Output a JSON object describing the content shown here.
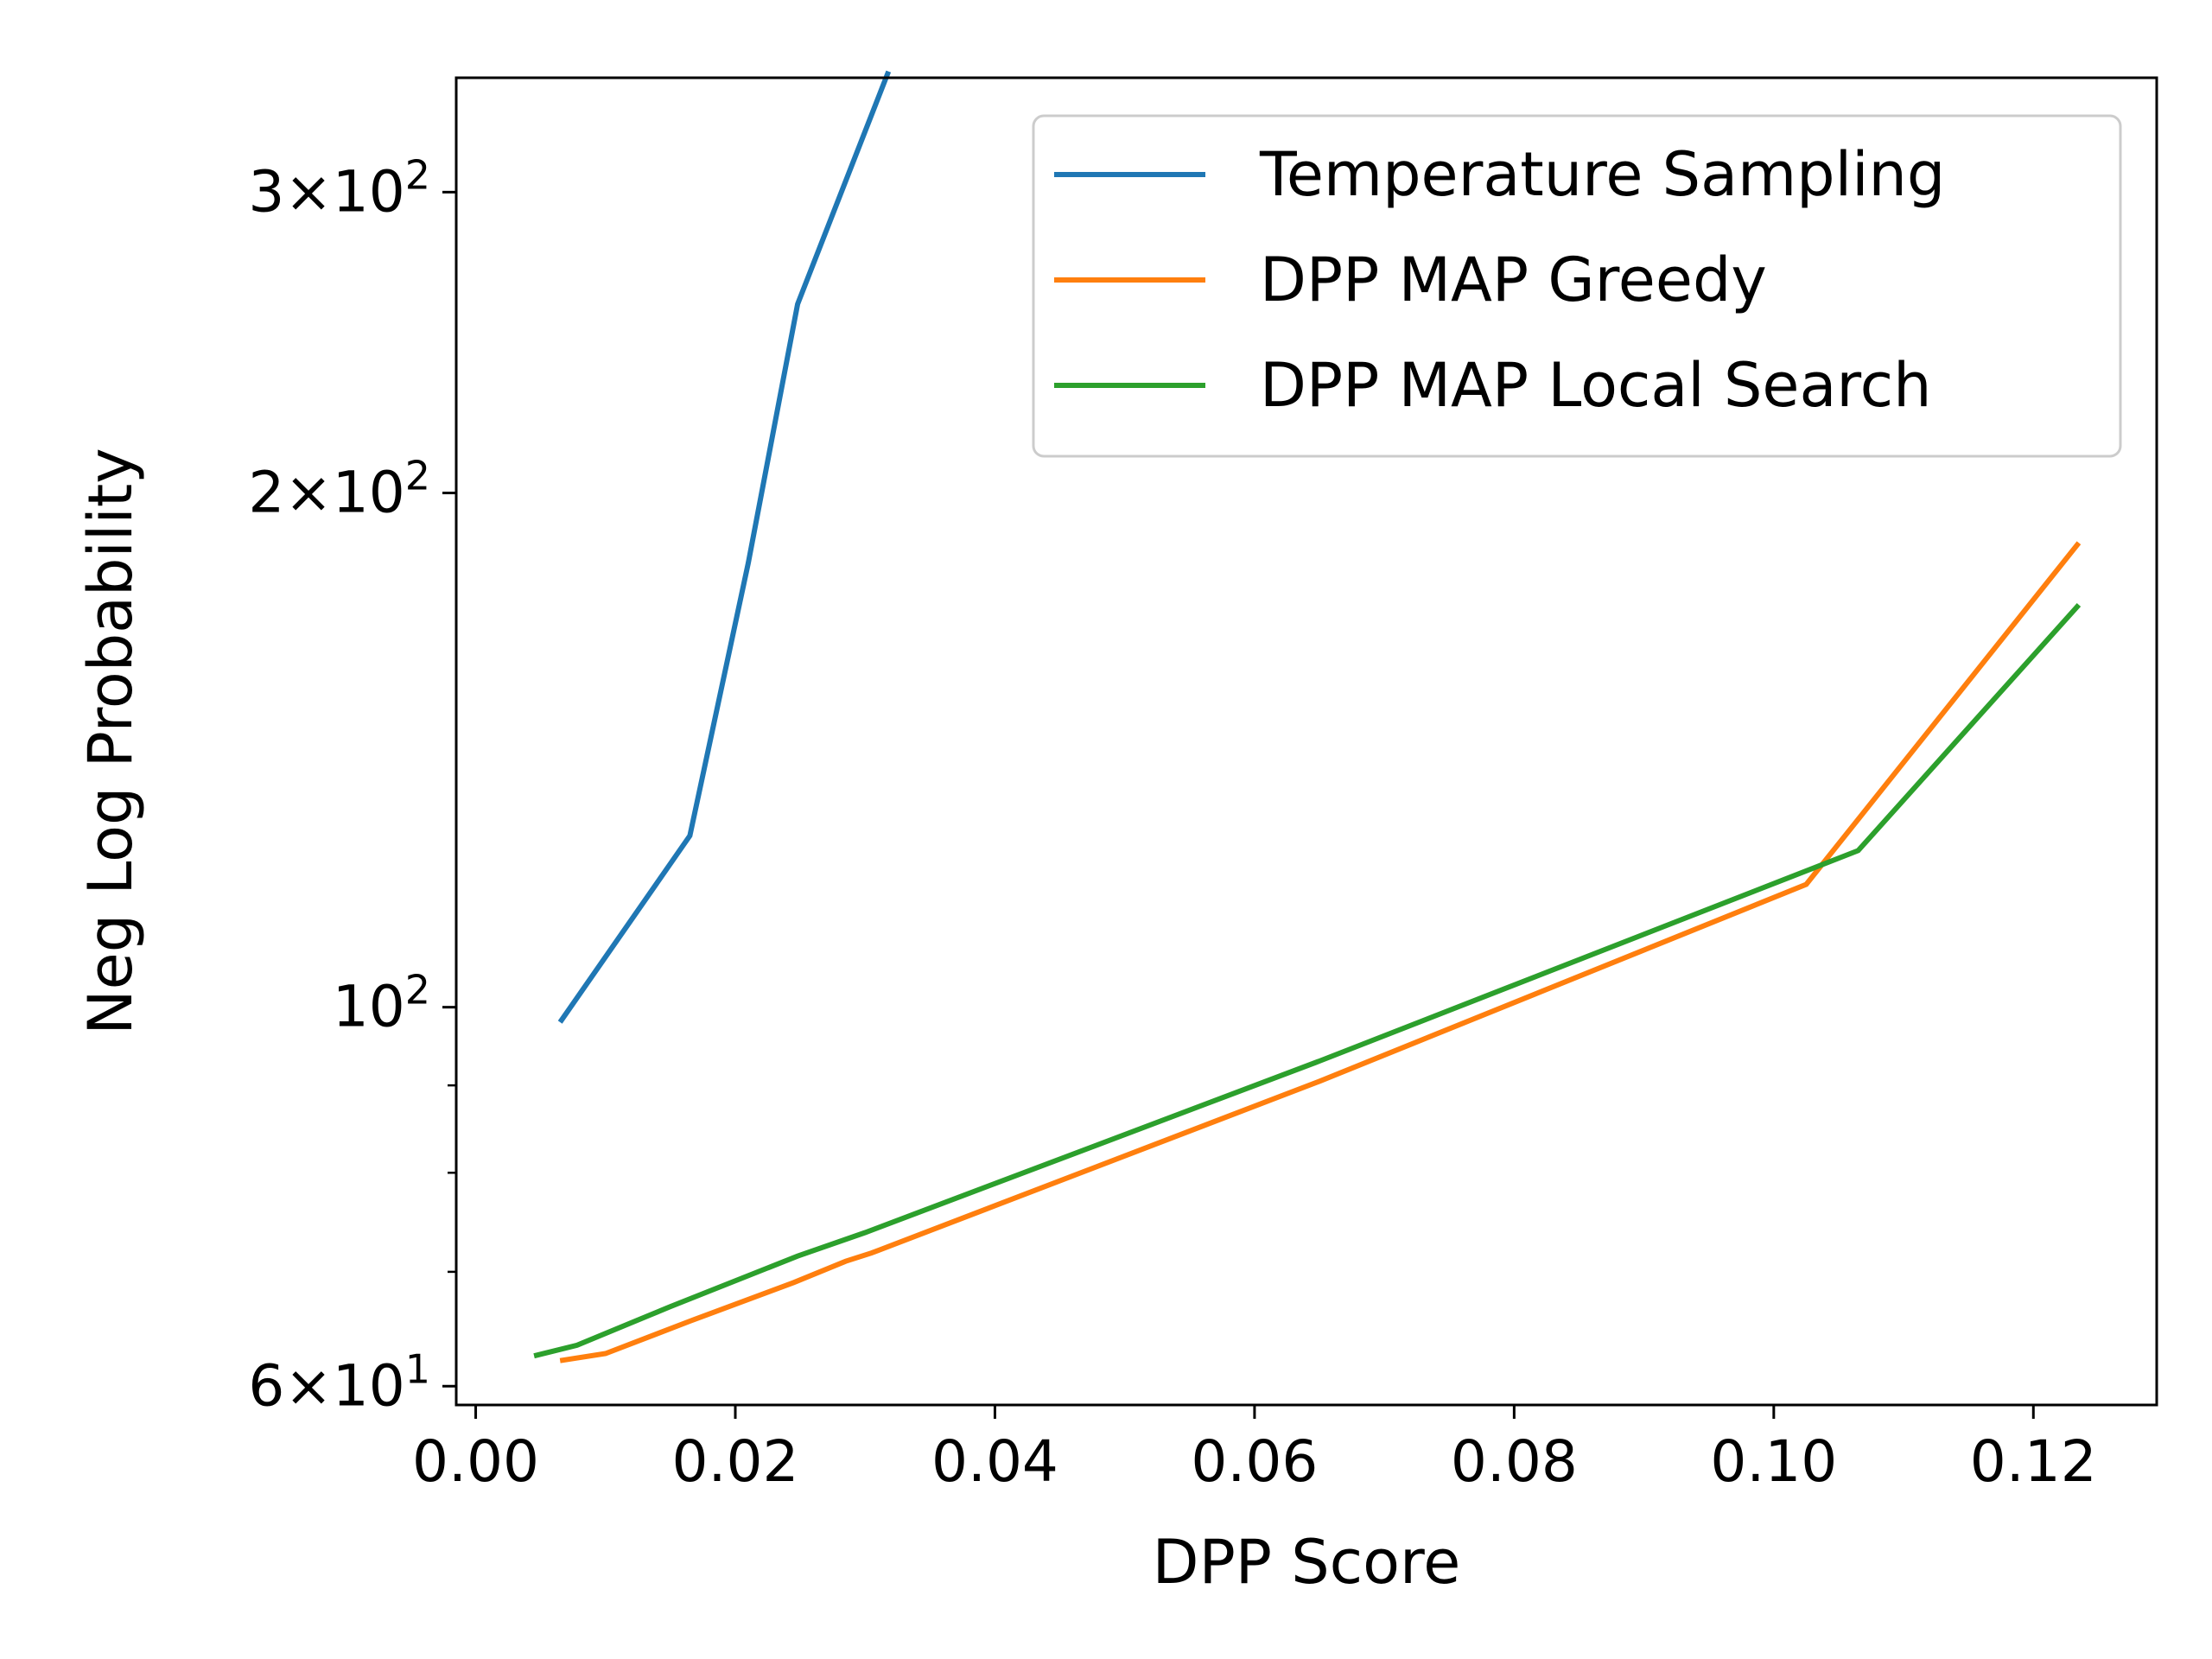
{
  "chart_data": {
    "type": "line",
    "title": "",
    "xlabel": "DPP Score",
    "ylabel": "Neg Log Probability",
    "xlim": [
      -0.0015,
      0.1295
    ],
    "ylim": [
      58.5,
      350
    ],
    "yscale": "log",
    "grid": false,
    "legend_position": "top-right",
    "xticks": [
      {
        "value": 0.0,
        "label": "0.00"
      },
      {
        "value": 0.02,
        "label": "0.02"
      },
      {
        "value": 0.04,
        "label": "0.04"
      },
      {
        "value": 0.06,
        "label": "0.06"
      },
      {
        "value": 0.08,
        "label": "0.08"
      },
      {
        "value": 0.1,
        "label": "0.10"
      },
      {
        "value": 0.12,
        "label": "0.12"
      }
    ],
    "yticks_major": [
      {
        "value": 60,
        "mantissa": "6",
        "exponent": "1"
      },
      {
        "value": 100,
        "mantissa": "",
        "exponent": "2"
      },
      {
        "value": 200,
        "mantissa": "2",
        "exponent": "2"
      },
      {
        "value": 300,
        "mantissa": "3",
        "exponent": "2"
      }
    ],
    "yticks_minor": [
      70,
      80,
      90
    ],
    "series": [
      {
        "name": "Temperature Sampling",
        "color": "#1f77b4",
        "points": [
          {
            "x": 0.0065,
            "y": 98
          },
          {
            "x": 0.0165,
            "y": 126
          },
          {
            "x": 0.021,
            "y": 182
          },
          {
            "x": 0.0248,
            "y": 258
          },
          {
            "x": 0.0318,
            "y": 353
          }
        ]
      },
      {
        "name": "DPP MAP Greedy",
        "color": "#ff7f0e",
        "points": [
          {
            "x": 0.0065,
            "y": 62.1
          },
          {
            "x": 0.01,
            "y": 62.7
          },
          {
            "x": 0.0165,
            "y": 65.5
          },
          {
            "x": 0.0245,
            "y": 69.0
          },
          {
            "x": 0.0285,
            "y": 71.0
          },
          {
            "x": 0.0305,
            "y": 71.8
          },
          {
            "x": 0.065,
            "y": 90.5
          },
          {
            "x": 0.1025,
            "y": 118.0
          },
          {
            "x": 0.1235,
            "y": 187.0
          }
        ]
      },
      {
        "name": "DPP MAP Local Search",
        "color": "#2ca02c",
        "points": [
          {
            "x": 0.0045,
            "y": 62.5
          },
          {
            "x": 0.0078,
            "y": 63.4
          },
          {
            "x": 0.015,
            "y": 66.8
          },
          {
            "x": 0.0248,
            "y": 71.5
          },
          {
            "x": 0.03,
            "y": 73.8
          },
          {
            "x": 0.065,
            "y": 93.0
          },
          {
            "x": 0.1065,
            "y": 123.5
          },
          {
            "x": 0.1235,
            "y": 172.0
          }
        ]
      }
    ]
  }
}
